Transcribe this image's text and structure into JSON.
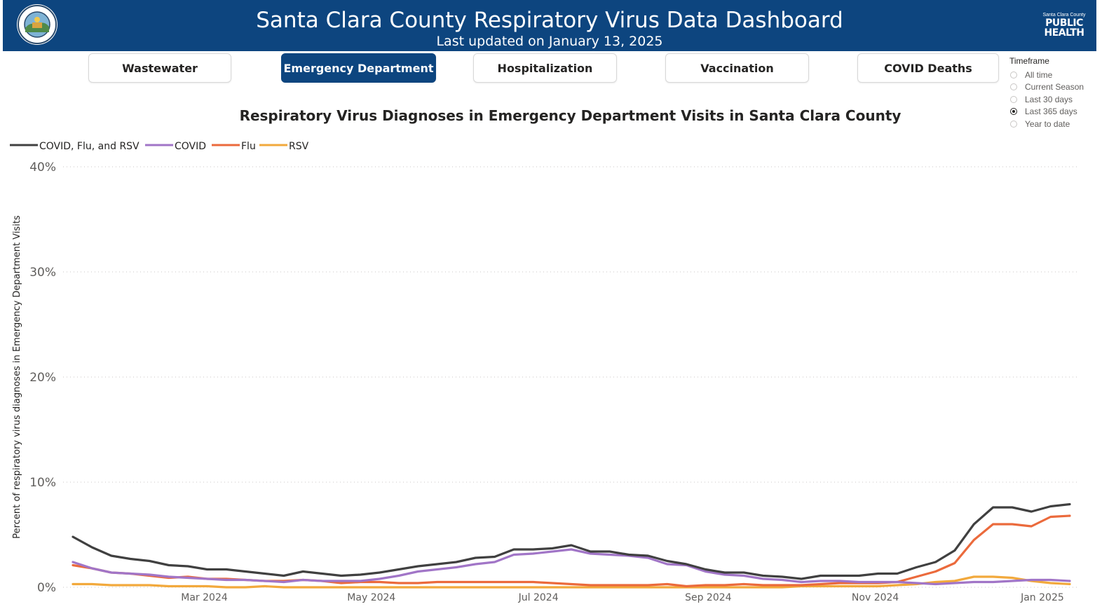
{
  "header": {
    "title": "Santa Clara County Respiratory Virus Data Dashboard",
    "subtitle": "Last updated on January 13, 2025",
    "public_health_logo": {
      "line1": "Santa Clara County",
      "line2": "PUBLIC",
      "line3": "HEALTH"
    }
  },
  "nav": {
    "tabs": [
      {
        "label": "Wastewater",
        "active": false
      },
      {
        "label": "Emergency Department",
        "active": true
      },
      {
        "label": "Hospitalization",
        "active": false
      },
      {
        "label": "Vaccination",
        "active": false
      },
      {
        "label": "COVID Deaths",
        "active": false
      }
    ]
  },
  "timeframe": {
    "label": "Timeframe",
    "options": [
      "All time",
      "Current Season",
      "Last 30 days",
      "Last 365 days",
      "Year to date"
    ],
    "selected": "Last 365 days"
  },
  "colors": {
    "header_bg": "#0d457f",
    "combined": "#404040",
    "covid": "#a175c7",
    "flu": "#eb6a3c",
    "rsv": "#f2a93c"
  },
  "chart_data": {
    "type": "line",
    "title": "Respiratory Virus Diagnoses in Emergency Department Visits in Santa Clara County",
    "xlabel": "",
    "ylabel": "Percent of respiratory virus diagnoses in Emergency Department Visits",
    "ylim": [
      0,
      40
    ],
    "yticks": [
      "0%",
      "10%",
      "20%",
      "30%",
      "40%"
    ],
    "xticks": [
      "Mar 2024",
      "May 2024",
      "Jul 2024",
      "Sep 2024",
      "Nov 2024",
      "Jan 2025"
    ],
    "xtick_dates": [
      "2024-03-01",
      "2024-05-01",
      "2024-07-01",
      "2024-09-01",
      "2024-11-01",
      "2025-01-01"
    ],
    "grid": "horizontal-dotted",
    "legend": "top-left",
    "x": [
      "2024-01-13",
      "2024-01-20",
      "2024-01-27",
      "2024-02-03",
      "2024-02-10",
      "2024-02-17",
      "2024-02-24",
      "2024-03-02",
      "2024-03-09",
      "2024-03-16",
      "2024-03-23",
      "2024-03-30",
      "2024-04-06",
      "2024-04-13",
      "2024-04-20",
      "2024-04-27",
      "2024-05-04",
      "2024-05-11",
      "2024-05-18",
      "2024-05-25",
      "2024-06-01",
      "2024-06-08",
      "2024-06-15",
      "2024-06-22",
      "2024-06-29",
      "2024-07-06",
      "2024-07-13",
      "2024-07-20",
      "2024-07-27",
      "2024-08-03",
      "2024-08-10",
      "2024-08-17",
      "2024-08-24",
      "2024-08-31",
      "2024-09-07",
      "2024-09-14",
      "2024-09-21",
      "2024-09-28",
      "2024-10-05",
      "2024-10-12",
      "2024-10-19",
      "2024-10-26",
      "2024-11-02",
      "2024-11-09",
      "2024-11-16",
      "2024-11-23",
      "2024-11-30",
      "2024-12-07",
      "2024-12-14",
      "2024-12-21",
      "2024-12-28",
      "2025-01-04",
      "2025-01-11"
    ],
    "series": [
      {
        "name": "COVID, Flu, and RSV",
        "color": "#404040",
        "values": [
          4.8,
          3.8,
          3.0,
          2.7,
          2.5,
          2.1,
          2.0,
          1.7,
          1.7,
          1.5,
          1.3,
          1.1,
          1.5,
          1.3,
          1.1,
          1.2,
          1.4,
          1.7,
          2.0,
          2.2,
          2.4,
          2.8,
          2.9,
          3.6,
          3.6,
          3.7,
          4.0,
          3.4,
          3.4,
          3.1,
          3.0,
          2.5,
          2.2,
          1.7,
          1.4,
          1.4,
          1.1,
          1.0,
          0.8,
          1.1,
          1.1,
          1.1,
          1.3,
          1.3,
          1.9,
          2.4,
          3.5,
          6.0,
          7.6,
          7.6,
          7.2,
          7.7,
          7.9
        ]
      },
      {
        "name": "COVID",
        "color": "#a175c7",
        "values": [
          2.4,
          1.8,
          1.4,
          1.3,
          1.2,
          1.0,
          0.9,
          0.8,
          0.7,
          0.7,
          0.6,
          0.5,
          0.7,
          0.6,
          0.6,
          0.6,
          0.8,
          1.1,
          1.5,
          1.7,
          1.9,
          2.2,
          2.4,
          3.1,
          3.2,
          3.4,
          3.6,
          3.2,
          3.1,
          3.0,
          2.8,
          2.2,
          2.1,
          1.5,
          1.2,
          1.1,
          0.8,
          0.7,
          0.5,
          0.6,
          0.6,
          0.5,
          0.5,
          0.5,
          0.4,
          0.3,
          0.4,
          0.5,
          0.5,
          0.6,
          0.7,
          0.7,
          0.6
        ]
      },
      {
        "name": "Flu",
        "color": "#eb6a3c",
        "values": [
          2.1,
          1.8,
          1.4,
          1.3,
          1.1,
          0.9,
          1.0,
          0.8,
          0.8,
          0.7,
          0.6,
          0.6,
          0.7,
          0.6,
          0.4,
          0.5,
          0.5,
          0.4,
          0.4,
          0.5,
          0.5,
          0.5,
          0.5,
          0.5,
          0.5,
          0.4,
          0.3,
          0.2,
          0.2,
          0.2,
          0.2,
          0.3,
          0.1,
          0.2,
          0.2,
          0.3,
          0.2,
          0.2,
          0.2,
          0.3,
          0.4,
          0.4,
          0.4,
          0.5,
          1.0,
          1.5,
          2.3,
          4.5,
          6.0,
          6.0,
          5.8,
          6.7,
          6.8
        ]
      },
      {
        "name": "RSV",
        "color": "#f2a93c",
        "values": [
          0.3,
          0.3,
          0.2,
          0.2,
          0.2,
          0.1,
          0.1,
          0.1,
          0.0,
          0.0,
          0.1,
          0.0,
          0.0,
          0.0,
          0.0,
          0.0,
          0.0,
          0.0,
          0.0,
          0.0,
          0.0,
          0.0,
          0.0,
          0.0,
          0.0,
          0.0,
          0.0,
          0.0,
          0.0,
          0.0,
          0.0,
          0.0,
          0.0,
          0.0,
          0.0,
          0.0,
          0.0,
          0.0,
          0.1,
          0.1,
          0.1,
          0.1,
          0.1,
          0.2,
          0.3,
          0.5,
          0.6,
          1.0,
          1.0,
          0.9,
          0.6,
          0.4,
          0.3
        ]
      }
    ]
  }
}
